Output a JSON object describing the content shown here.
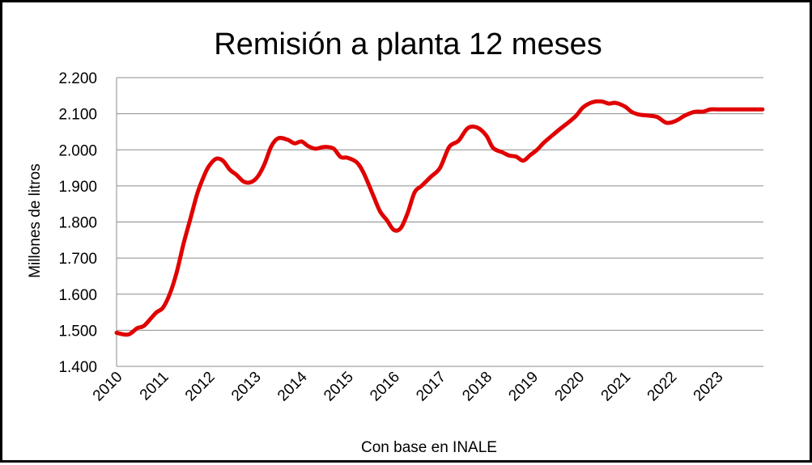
{
  "chart_data": {
    "type": "line",
    "title": "Remisión a planta 12 meses",
    "xlabel": "Con base en INALE",
    "ylabel": "Millones de litros",
    "ylim": [
      1400,
      2200
    ],
    "xlim": [
      2010,
      2024
    ],
    "yticks": [
      1400,
      1500,
      1600,
      1700,
      1800,
      1900,
      2000,
      2100,
      2200
    ],
    "ytick_labels": [
      "1.400",
      "1.500",
      "1.600",
      "1.700",
      "1.800",
      "1.900",
      "2.000",
      "2.100",
      "2.200"
    ],
    "xtick_labels": [
      "2010",
      "2011",
      "2012",
      "2013",
      "2014",
      "2015",
      "2016",
      "2017",
      "2018",
      "2019",
      "2020",
      "2021",
      "2022",
      "2023"
    ],
    "grid": true,
    "legend": "none",
    "line_color": "#e00000",
    "series": [
      {
        "x": [
          2010.0,
          2010.25,
          2010.45,
          2010.6,
          2010.85,
          2011.0,
          2011.15,
          2011.3,
          2011.45,
          2011.6,
          2011.75,
          2011.9,
          2012.0,
          2012.15,
          2012.3,
          2012.45,
          2012.6,
          2012.75,
          2012.9,
          2013.05,
          2013.2,
          2013.35,
          2013.5,
          2013.7,
          2013.85,
          2014.0,
          2014.15,
          2014.3,
          2014.45,
          2014.55,
          2014.7,
          2014.85,
          2015.0,
          2015.2,
          2015.35,
          2015.55,
          2015.7,
          2015.85,
          2016.0,
          2016.15,
          2016.3,
          2016.45,
          2016.6,
          2016.8,
          2017.0,
          2017.2,
          2017.4,
          2017.6,
          2017.8,
          2018.0,
          2018.15,
          2018.35,
          2018.5,
          2018.65,
          2018.8,
          2018.95,
          2019.1,
          2019.25,
          2019.45,
          2019.6,
          2019.8,
          2019.95,
          2020.1,
          2020.3,
          2020.5,
          2020.65,
          2020.8,
          2021.0,
          2021.15,
          2021.3,
          2021.5,
          2021.7,
          2021.9,
          2022.1,
          2022.3,
          2022.5,
          2022.7,
          2022.85,
          2023.0,
          2023.15,
          2023.35,
          2023.5,
          2023.65,
          2023.85,
          2023.98
        ],
        "values": [
          1493,
          1488,
          1506,
          1513,
          1548,
          1562,
          1600,
          1660,
          1740,
          1810,
          1880,
          1930,
          1955,
          1975,
          1970,
          1945,
          1930,
          1912,
          1910,
          1925,
          1960,
          2010,
          2032,
          2028,
          2018,
          2023,
          2010,
          2003,
          2007,
          2008,
          2003,
          1980,
          1978,
          1965,
          1935,
          1875,
          1830,
          1805,
          1778,
          1783,
          1825,
          1882,
          1900,
          1925,
          1950,
          2008,
          2025,
          2060,
          2062,
          2040,
          2005,
          1993,
          1984,
          1981,
          1970,
          1985,
          2000,
          2020,
          2042,
          2058,
          2078,
          2095,
          2118,
          2132,
          2134,
          2128,
          2130,
          2120,
          2105,
          2098,
          2095,
          2091,
          2075,
          2080,
          2095,
          2105,
          2106,
          2112,
          2112,
          2112,
          2112,
          2112,
          2112,
          2112,
          2112
        ]
      }
    ]
  }
}
